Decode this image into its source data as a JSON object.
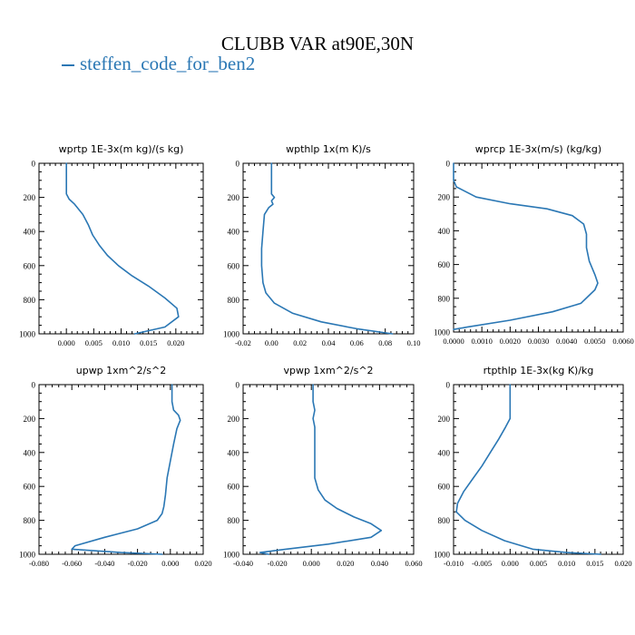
{
  "title": "CLUBB VAR at90E,30N",
  "legend": {
    "label": "steffen_code_for_ben2",
    "color": "#2a77b4"
  },
  "line_color": "#2a77b4",
  "chart_data": [
    {
      "type": "line",
      "title": "wprtp   1E-3x(m kg)/(s kg)",
      "xlim": [
        -0.005,
        0.025
      ],
      "ylim": [
        1000,
        0
      ],
      "yticks": [
        0,
        200,
        400,
        600,
        800,
        1000
      ],
      "xticks": [
        0.0,
        0.005,
        0.01,
        0.015,
        0.02
      ],
      "xtick_labels": [
        "0.000",
        "0.005",
        "0.010",
        "0.015",
        "0.020"
      ],
      "x": [
        0.0,
        0.0,
        0.0,
        0.0005,
        0.0015,
        0.003,
        0.004,
        0.0048,
        0.006,
        0.0075,
        0.0095,
        0.012,
        0.015,
        0.018,
        0.0202,
        0.0205,
        0.018,
        0.0125
      ],
      "y": [
        0,
        100,
        180,
        210,
        240,
        300,
        360,
        420,
        480,
        540,
        600,
        660,
        720,
        790,
        850,
        900,
        960,
        1000
      ]
    },
    {
      "type": "line",
      "title": "wpthlp   1x(m K)/s",
      "xlim": [
        -0.02,
        0.1
      ],
      "ylim": [
        1000,
        0
      ],
      "yticks": [
        0,
        200,
        400,
        600,
        800,
        1000
      ],
      "xticks": [
        -0.02,
        0.0,
        0.02,
        0.04,
        0.06,
        0.08,
        0.1
      ],
      "xtick_labels": [
        "-0.02",
        "0.00",
        "0.02",
        "0.04",
        "0.06",
        "0.08",
        "0.10"
      ],
      "x": [
        0.0,
        0.0,
        0.0,
        0.002,
        0.0,
        0.001,
        -0.002,
        -0.005,
        -0.006,
        -0.007,
        -0.007,
        -0.006,
        -0.004,
        0.002,
        0.015,
        0.035,
        0.06,
        0.085
      ],
      "y": [
        0,
        100,
        180,
        200,
        220,
        240,
        260,
        300,
        400,
        500,
        600,
        700,
        760,
        820,
        880,
        930,
        970,
        1000
      ]
    },
    {
      "type": "line",
      "title": "wprcp   1E-3x(m/s) (kg/kg)",
      "xlim": [
        0.0,
        0.006
      ],
      "ylim": [
        1000,
        0
      ],
      "yticks": [
        0,
        200,
        400,
        600,
        800,
        1000
      ],
      "xticks": [
        0.0,
        0.001,
        0.002,
        0.003,
        0.004,
        0.005,
        0.006
      ],
      "xtick_labels": [
        "0.0000",
        "0.0010",
        "0.0020",
        "0.0030",
        "0.0040",
        "0.0050",
        "0.0060"
      ],
      "x": [
        0.0,
        0.0,
        0.0001,
        0.0008,
        0.002,
        0.0033,
        0.0042,
        0.0046,
        0.0047,
        0.0047,
        0.0048,
        0.005,
        0.0051,
        0.005,
        0.0045,
        0.0035,
        0.002,
        0.0005,
        0.0
      ],
      "y": [
        0,
        100,
        140,
        200,
        240,
        270,
        310,
        360,
        420,
        500,
        580,
        660,
        710,
        750,
        830,
        880,
        930,
        970,
        985
      ]
    },
    {
      "type": "line",
      "title": "upwp   1xm^2/s^2",
      "xlim": [
        -0.08,
        0.02
      ],
      "ylim": [
        1000,
        0
      ],
      "yticks": [
        0,
        200,
        400,
        600,
        800,
        1000
      ],
      "xticks": [
        -0.08,
        -0.06,
        -0.04,
        -0.02,
        0.0,
        0.02
      ],
      "xtick_labels": [
        "-0.080",
        "-0.060",
        "-0.040",
        "-0.020",
        "0.000",
        "0.020"
      ],
      "x": [
        0.001,
        0.001,
        0.002,
        0.005,
        0.006,
        0.004,
        0.002,
        0.0,
        -0.002,
        -0.003,
        -0.004,
        -0.005,
        -0.008,
        -0.02,
        -0.04,
        -0.058,
        -0.06,
        -0.03,
        -0.005
      ],
      "y": [
        0,
        100,
        150,
        180,
        210,
        260,
        350,
        450,
        550,
        650,
        720,
        760,
        800,
        850,
        900,
        950,
        970,
        990,
        1000
      ]
    },
    {
      "type": "line",
      "title": "vpwp   1xm^2/s^2",
      "xlim": [
        -0.04,
        0.06
      ],
      "ylim": [
        1000,
        0
      ],
      "yticks": [
        0,
        200,
        400,
        600,
        800,
        1000
      ],
      "xticks": [
        -0.04,
        -0.02,
        0.0,
        0.02,
        0.04,
        0.06
      ],
      "xtick_labels": [
        "-0.040",
        "-0.020",
        "0.000",
        "0.020",
        "0.040",
        "0.060"
      ],
      "x": [
        0.001,
        0.001,
        0.002,
        0.001,
        0.002,
        0.002,
        0.002,
        0.004,
        0.008,
        0.015,
        0.025,
        0.035,
        0.041,
        0.035,
        0.01,
        -0.015,
        -0.03,
        -0.025
      ],
      "y": [
        0,
        100,
        150,
        200,
        250,
        400,
        550,
        620,
        680,
        730,
        780,
        820,
        860,
        900,
        940,
        970,
        990,
        1000
      ]
    },
    {
      "type": "line",
      "title": "rtpthlp   1E-3x(kg K)/kg",
      "xlim": [
        -0.01,
        0.02
      ],
      "ylim": [
        1000,
        0
      ],
      "yticks": [
        0,
        200,
        400,
        600,
        800,
        1000
      ],
      "xticks": [
        -0.01,
        -0.005,
        0.0,
        0.005,
        0.01,
        0.015,
        0.02
      ],
      "xtick_labels": [
        "-0.010",
        "-0.005",
        "0.000",
        "0.005",
        "0.010",
        "0.015",
        "0.020"
      ],
      "x": [
        0.0,
        0.0,
        0.0,
        -0.0008,
        -0.002,
        -0.0035,
        -0.005,
        -0.0065,
        -0.0082,
        -0.0093,
        -0.0095,
        -0.008,
        -0.005,
        -0.001,
        0.004,
        0.01,
        0.016
      ],
      "y": [
        0,
        100,
        200,
        250,
        320,
        400,
        480,
        550,
        630,
        700,
        750,
        800,
        860,
        920,
        970,
        990,
        1000
      ]
    }
  ]
}
